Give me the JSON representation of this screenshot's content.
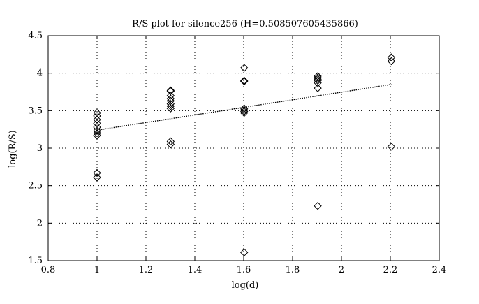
{
  "chart_data": {
    "type": "scatter",
    "title": "R/S plot for silence256 (H=0.508507605435866)",
    "xlabel": "log(d)",
    "ylabel": "log(R/S)",
    "xlim": [
      0.8,
      2.4
    ],
    "ylim": [
      1.5,
      4.5
    ],
    "xticks": [
      0.8,
      1.0,
      1.2,
      1.4,
      1.6,
      1.8,
      2.0,
      2.2,
      2.4
    ],
    "yticks": [
      1.5,
      2.0,
      2.5,
      3.0,
      3.5,
      4.0,
      4.5
    ],
    "xtick_labels": [
      "0.8",
      "1",
      "1.2",
      "1.4",
      "1.6",
      "1.8",
      "2",
      "2.2",
      "2.4"
    ],
    "ytick_labels": [
      "1.5",
      "2",
      "2.5",
      "3",
      "3.5",
      "4",
      "4.5"
    ],
    "grid": true,
    "grid_style": "dotted",
    "marker": "diamond",
    "series": [
      {
        "points": [
          [
            1.0,
            3.47
          ],
          [
            1.0,
            3.43
          ],
          [
            1.0,
            3.38
          ],
          [
            1.0,
            3.33
          ],
          [
            1.0,
            3.28
          ],
          [
            1.0,
            3.23
          ],
          [
            1.0,
            3.2
          ],
          [
            1.0,
            3.17
          ],
          [
            1.0,
            2.67
          ],
          [
            1.0,
            2.61
          ],
          [
            1.301,
            3.77
          ],
          [
            1.301,
            3.76
          ],
          [
            1.301,
            3.7
          ],
          [
            1.301,
            3.66
          ],
          [
            1.301,
            3.63
          ],
          [
            1.301,
            3.59
          ],
          [
            1.301,
            3.56
          ],
          [
            1.301,
            3.53
          ],
          [
            1.301,
            3.09
          ],
          [
            1.301,
            3.05
          ],
          [
            1.602,
            4.07
          ],
          [
            1.602,
            3.9
          ],
          [
            1.602,
            3.89
          ],
          [
            1.602,
            3.53
          ],
          [
            1.602,
            3.51
          ],
          [
            1.602,
            3.49
          ],
          [
            1.602,
            3.47
          ],
          [
            1.602,
            1.61
          ],
          [
            1.903,
            3.96
          ],
          [
            1.903,
            3.94
          ],
          [
            1.903,
            3.92
          ],
          [
            1.903,
            3.9
          ],
          [
            1.903,
            3.87
          ],
          [
            1.903,
            3.8
          ],
          [
            1.903,
            2.23
          ],
          [
            2.204,
            4.21
          ],
          [
            2.204,
            4.16
          ],
          [
            2.204,
            3.02
          ]
        ]
      }
    ],
    "fit_line": {
      "style": "dotted",
      "x": [
        1.0,
        2.204
      ],
      "y": [
        3.24,
        3.85
      ]
    }
  }
}
